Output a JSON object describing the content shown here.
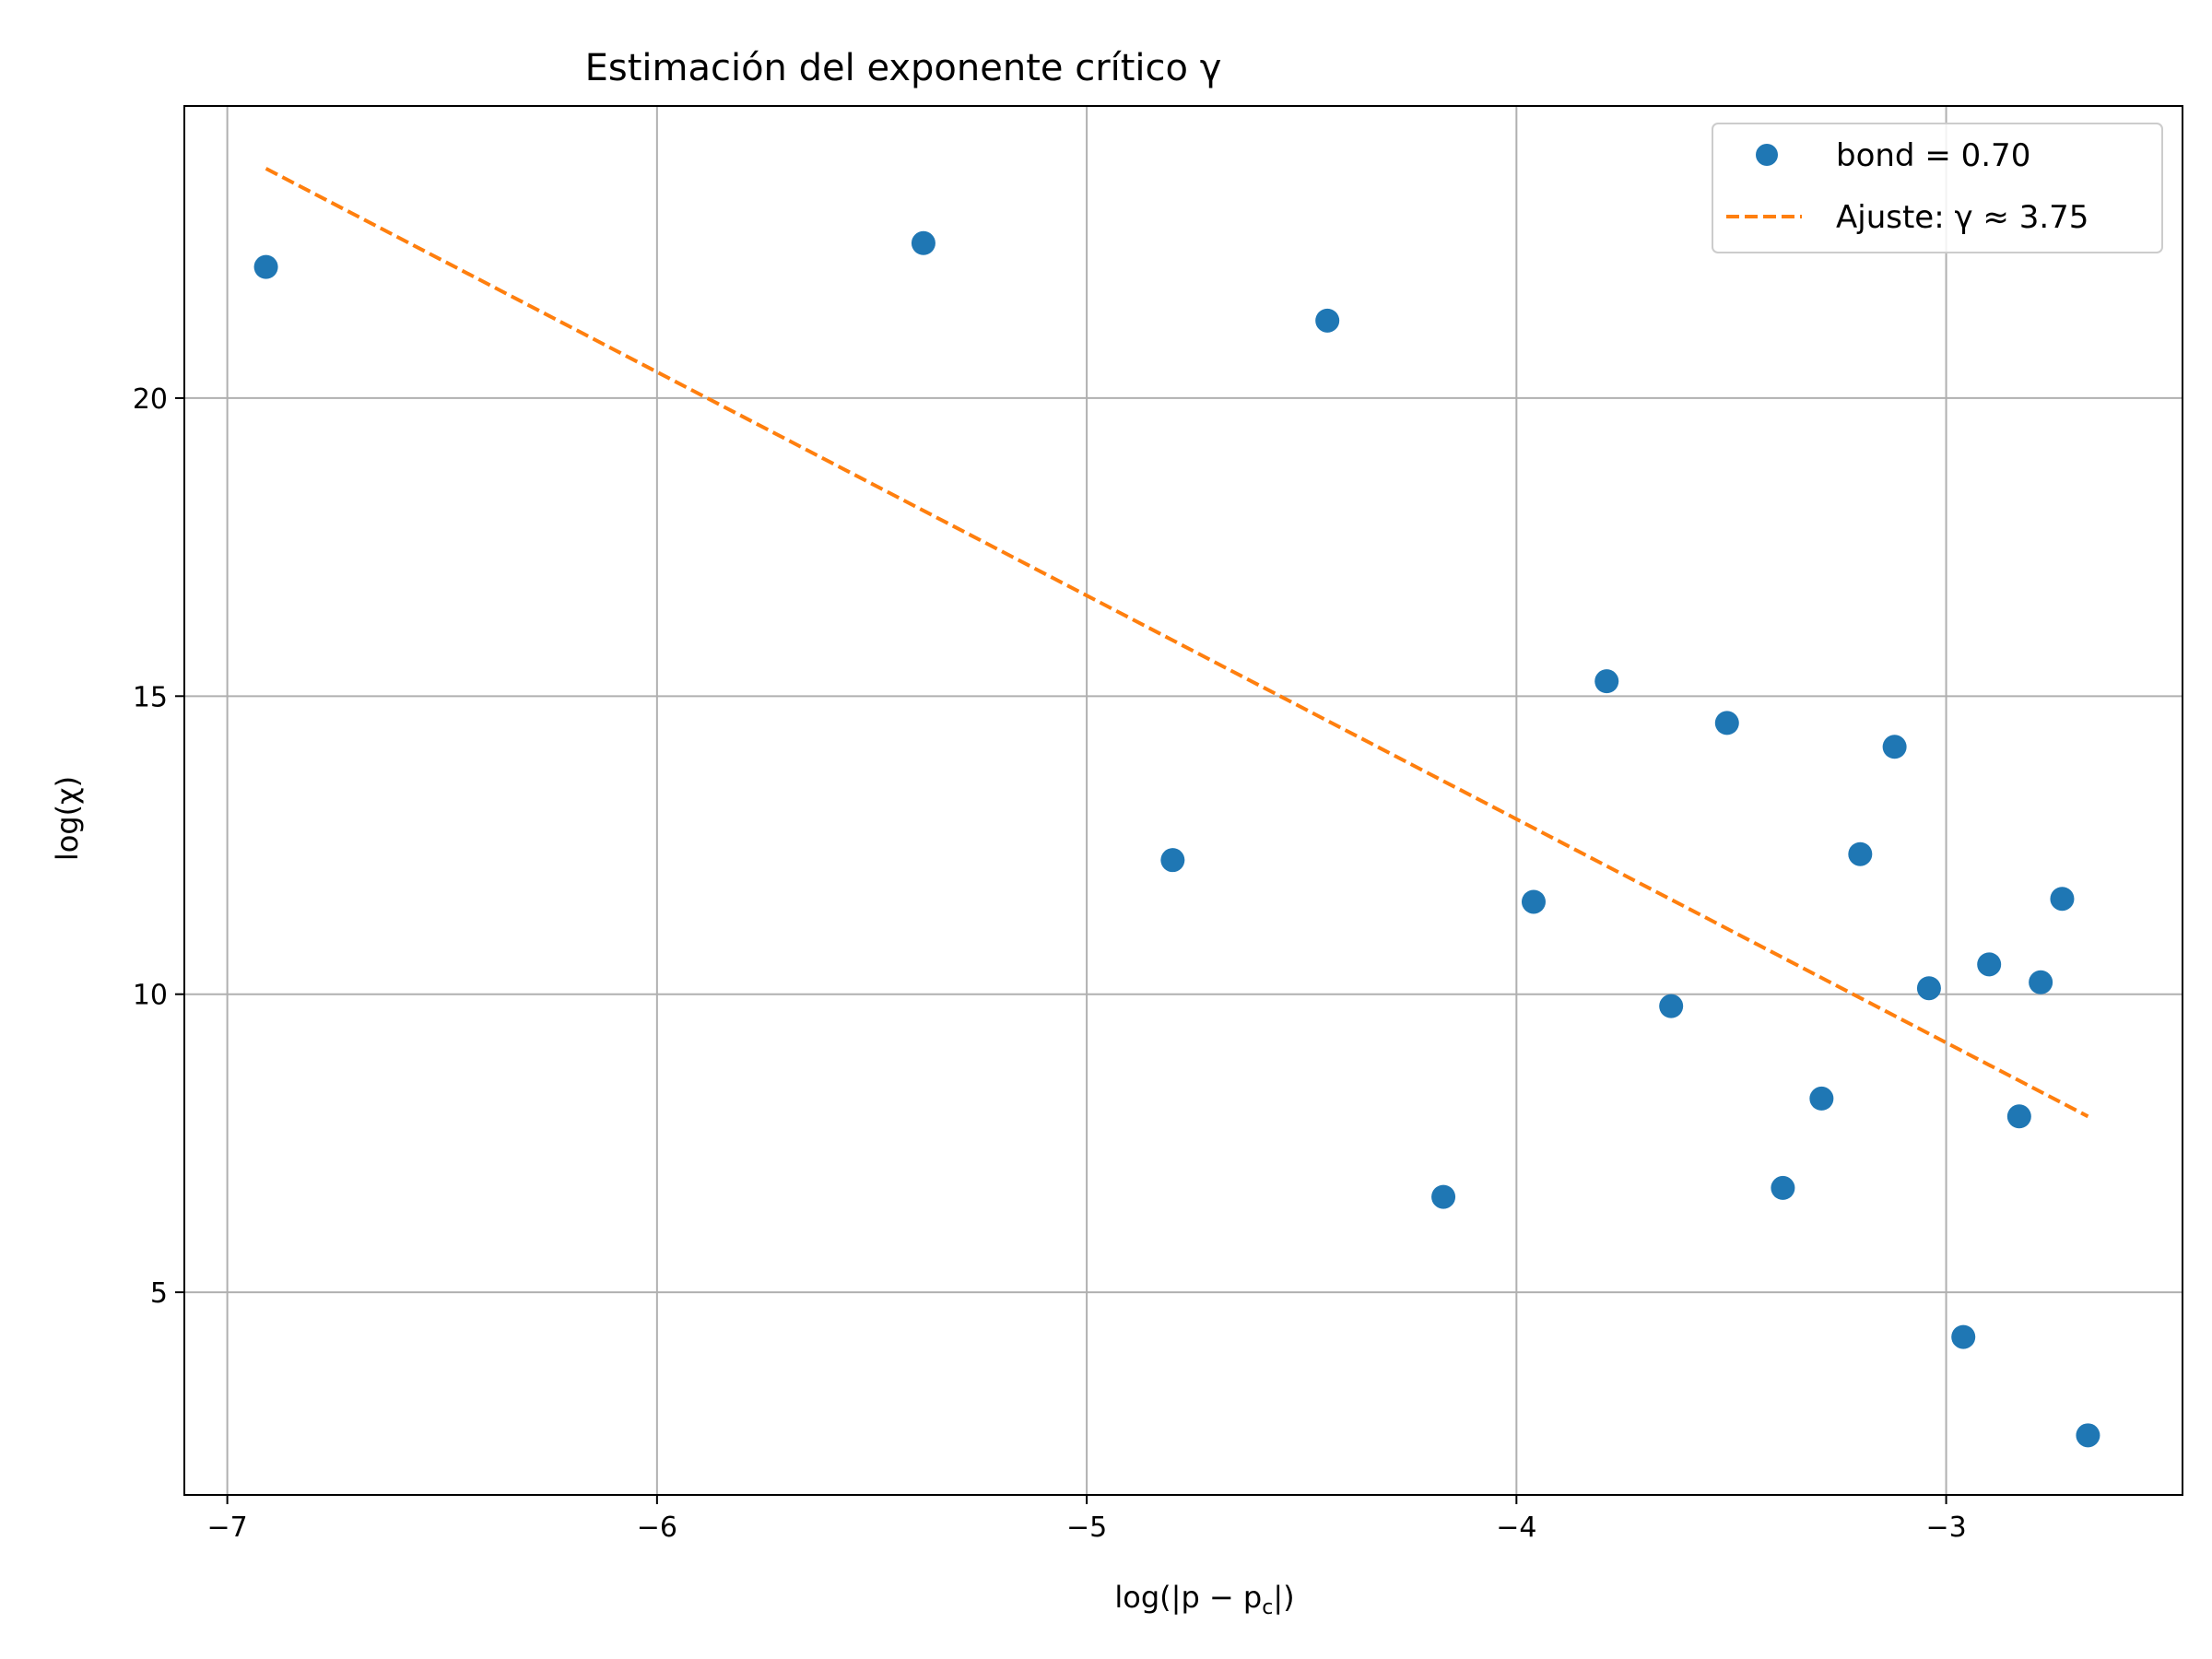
{
  "chart_data": {
    "type": "scatter",
    "title": "Estimación del exponente crítico γ",
    "xlabel": "log(|p − p",
    "xlabel_sub": "c",
    "xlabel_end": "|)",
    "ylabel": "log(χ)",
    "xlim": [
      -7.1,
      -2.45
    ],
    "ylim": [
      1.6,
      24.9
    ],
    "xticks": [
      -7,
      -6,
      -5,
      -4,
      -3
    ],
    "xtick_labels": [
      "−7",
      "−6",
      "−5",
      "−4",
      "−3"
    ],
    "yticks": [
      5,
      10,
      15,
      20
    ],
    "ytick_labels": [
      "5",
      "10",
      "15",
      "20"
    ],
    "grid": true,
    "legend_position": "top-right",
    "colors": {
      "scatter": "#1f77b4",
      "fit": "#ff7f0e"
    },
    "series": [
      {
        "name": "bond = 0.70",
        "kind": "points",
        "points": [
          [
            -6.91,
            22.2
          ],
          [
            -5.38,
            22.6
          ],
          [
            -4.8,
            12.25
          ],
          [
            -4.44,
            21.3
          ],
          [
            -4.17,
            6.6
          ],
          [
            -3.96,
            11.55
          ],
          [
            -3.79,
            15.25
          ],
          [
            -3.64,
            9.8
          ],
          [
            -3.51,
            14.55
          ],
          [
            -3.38,
            6.75
          ],
          [
            -3.29,
            8.25
          ],
          [
            -3.2,
            12.35
          ],
          [
            -3.12,
            14.15
          ],
          [
            -3.04,
            10.1
          ],
          [
            -2.96,
            4.25
          ],
          [
            -2.9,
            10.5
          ],
          [
            -2.83,
            7.95
          ],
          [
            -2.78,
            10.2
          ],
          [
            -2.73,
            11.6
          ],
          [
            -2.67,
            2.6
          ]
        ]
      },
      {
        "name": "Ajuste: γ ≈ 3.75",
        "kind": "dashed-line",
        "points": [
          [
            -6.91,
            23.85
          ],
          [
            -2.67,
            7.95
          ]
        ]
      }
    ]
  }
}
